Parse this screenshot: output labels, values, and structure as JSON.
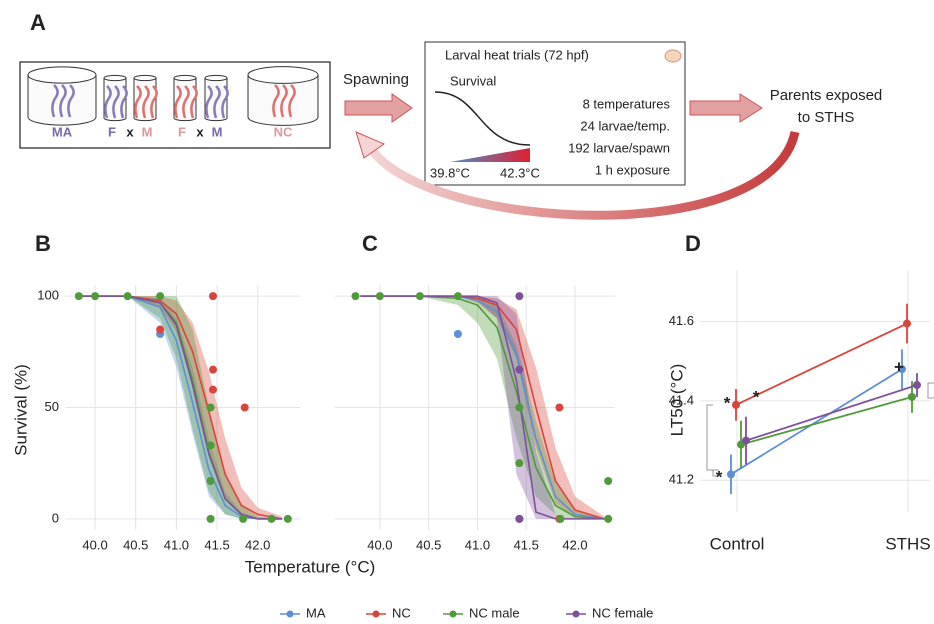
{
  "diagram": {
    "label": "A",
    "groups": [
      "MA",
      "F",
      "x",
      "M",
      "F",
      "x",
      "M",
      "NC"
    ],
    "step1": "Spawning",
    "inset_title": "Larval heat trials (72 hpf)",
    "inset_axis": "Survival",
    "range_low": "39.8°C",
    "range_high": "42.3°C",
    "details": [
      "8 temperatures",
      "24 larvae/temp.",
      "192 larvae/spawn",
      "1 h exposure"
    ],
    "step2": [
      "Parents exposed",
      "to STHS"
    ]
  },
  "chart_data": [
    {
      "type": "scatter",
      "label": "B",
      "xlabel": "Temperature (°C)",
      "ylabel": "Survival (%)",
      "xlim": [
        39.63,
        42.52
      ],
      "ylim": [
        -5,
        105
      ],
      "xticks": [
        {
          "value": 40,
          "label": "40.0"
        },
        40.5,
        {
          "value": 41,
          "label": "41.0"
        },
        41.5,
        {
          "value": 42,
          "label": "42.0"
        }
      ],
      "yticks": [
        0,
        50,
        100
      ],
      "grid": true,
      "fit_x": [
        39.8,
        40.4,
        40.8,
        41.0,
        41.2,
        41.4,
        41.6,
        41.8,
        42.0,
        42.3
      ],
      "series": [
        {
          "name": "MA",
          "color": "#5b8fd6",
          "x": [
            40.8
          ],
          "values": [
            83
          ],
          "fit": [
            100,
            100,
            95,
            80,
            52,
            22,
            6,
            1,
            0,
            0
          ],
          "band_upper": [
            100,
            100,
            99,
            90,
            68,
            36,
            12,
            3,
            0,
            0
          ],
          "band_lower": [
            100,
            100,
            88,
            68,
            38,
            10,
            2,
            0,
            0,
            0
          ]
        },
        {
          "name": "NC",
          "color": "#d9453a",
          "x": [
            40.8,
            41.45,
            41.45,
            41.45,
            41.84
          ],
          "values": [
            85,
            100,
            67,
            58,
            50
          ],
          "fit": [
            100,
            100,
            98,
            92,
            75,
            48,
            20,
            6,
            2,
            0
          ],
          "band_upper": [
            100,
            100,
            100,
            98,
            88,
            66,
            36,
            14,
            5,
            1
          ],
          "band_lower": [
            100,
            100,
            95,
            84,
            60,
            32,
            9,
            2,
            0,
            0
          ]
        },
        {
          "name": "NC male",
          "color": "#4f9a3a",
          "x": [
            39.8,
            40.0,
            40.4,
            40.8,
            41.42,
            41.42,
            41.42,
            41.42,
            41.82,
            42.17,
            42.37
          ],
          "values": [
            100,
            100,
            100,
            100,
            50,
            33,
            17,
            0,
            0,
            0,
            0
          ],
          "fit": [
            100,
            100,
            97,
            88,
            62,
            30,
            9,
            2,
            0,
            0
          ],
          "band_upper": [
            100,
            100,
            100,
            100,
            85,
            50,
            20,
            6,
            1,
            0
          ],
          "band_lower": [
            100,
            100,
            90,
            72,
            40,
            12,
            2,
            0,
            0,
            0
          ]
        },
        {
          "name": "NC female",
          "color": "#7e4f9a",
          "x": [],
          "values": [],
          "fit": [
            100,
            100,
            97,
            87,
            60,
            29,
            9,
            2,
            0,
            0
          ]
        }
      ]
    },
    {
      "type": "scatter",
      "label": "C",
      "xlim": [
        39.54,
        42.41
      ],
      "ylim": [
        -5,
        105
      ],
      "xticks": [
        {
          "value": 40,
          "label": "40.0"
        },
        40.5,
        {
          "value": 41,
          "label": "41.0"
        },
        41.5,
        {
          "value": 42,
          "label": "42.0"
        }
      ],
      "yticks": [
        0,
        50,
        100
      ],
      "grid": true,
      "fit_x": [
        39.8,
        40.4,
        40.8,
        41.0,
        41.2,
        41.4,
        41.6,
        41.8,
        42.0,
        42.3
      ],
      "series": [
        {
          "color": "#5b8fd6",
          "x": [
            40.8
          ],
          "values": [
            83
          ],
          "fit": [
            100,
            100,
            100,
            98,
            93,
            74,
            36,
            10,
            2,
            0
          ]
        },
        {
          "color": "#d9453a",
          "x": [
            41.84,
            41.84
          ],
          "values": [
            50,
            0
          ],
          "fit": [
            100,
            100,
            100,
            99,
            96,
            85,
            50,
            17,
            4,
            0
          ],
          "band_upper": [
            100,
            100,
            100,
            100,
            99,
            94,
            68,
            32,
            10,
            1
          ],
          "band_lower": [
            100,
            100,
            100,
            97,
            90,
            72,
            32,
            7,
            1,
            0
          ]
        },
        {
          "color": "#4f9a3a",
          "x": [
            39.75,
            40.0,
            40.41,
            40.8,
            41.43,
            41.43,
            41.43,
            41.85,
            42.34,
            42.34
          ],
          "values": [
            100,
            100,
            100,
            100,
            50,
            25,
            0,
            0,
            0,
            17
          ],
          "fit": [
            100,
            100,
            99,
            96,
            86,
            57,
            23,
            6,
            1,
            0
          ],
          "band_upper": [
            100,
            100,
            100,
            100,
            96,
            78,
            44,
            16,
            4,
            0
          ],
          "band_lower": [
            100,
            100,
            96,
            88,
            72,
            36,
            10,
            2,
            0,
            0
          ]
        },
        {
          "color": "#7e4f9a",
          "x": [
            41.43,
            41.43,
            41.43
          ],
          "values": [
            100,
            67,
            0
          ],
          "fit": [
            100,
            100,
            100,
            100,
            97,
            62,
            3,
            0,
            0,
            0
          ],
          "band_upper": [
            100,
            100,
            100,
            100,
            100,
            92,
            30,
            2,
            0,
            0
          ],
          "band_lower": [
            100,
            100,
            100,
            98,
            90,
            20,
            0,
            0,
            0,
            0
          ]
        }
      ]
    },
    {
      "type": "errorbar",
      "label": "D",
      "ylabel": "LT50 (°C)",
      "categories": [
        "Control",
        "STHS"
      ],
      "ylim": [
        41.12,
        41.73
      ],
      "yticks": [
        41.2,
        41.4,
        41.6
      ],
      "grid": true,
      "annotations": [
        "*",
        "*",
        "*",
        "+"
      ],
      "series": [
        {
          "color": "#5b8fd6",
          "values": [
            41.215,
            41.48
          ],
          "errors": [
            0.05,
            0.05
          ]
        },
        {
          "color": "#d9453a",
          "values": [
            41.39,
            41.595
          ],
          "errors": [
            0.04,
            0.05
          ]
        },
        {
          "color": "#4f9a3a",
          "values": [
            41.29,
            41.41
          ],
          "errors": [
            0.06,
            0.04
          ]
        },
        {
          "color": "#7e4f9a",
          "values": [
            41.3,
            41.44
          ],
          "errors": [
            0.06,
            0.03
          ]
        }
      ]
    }
  ]
}
